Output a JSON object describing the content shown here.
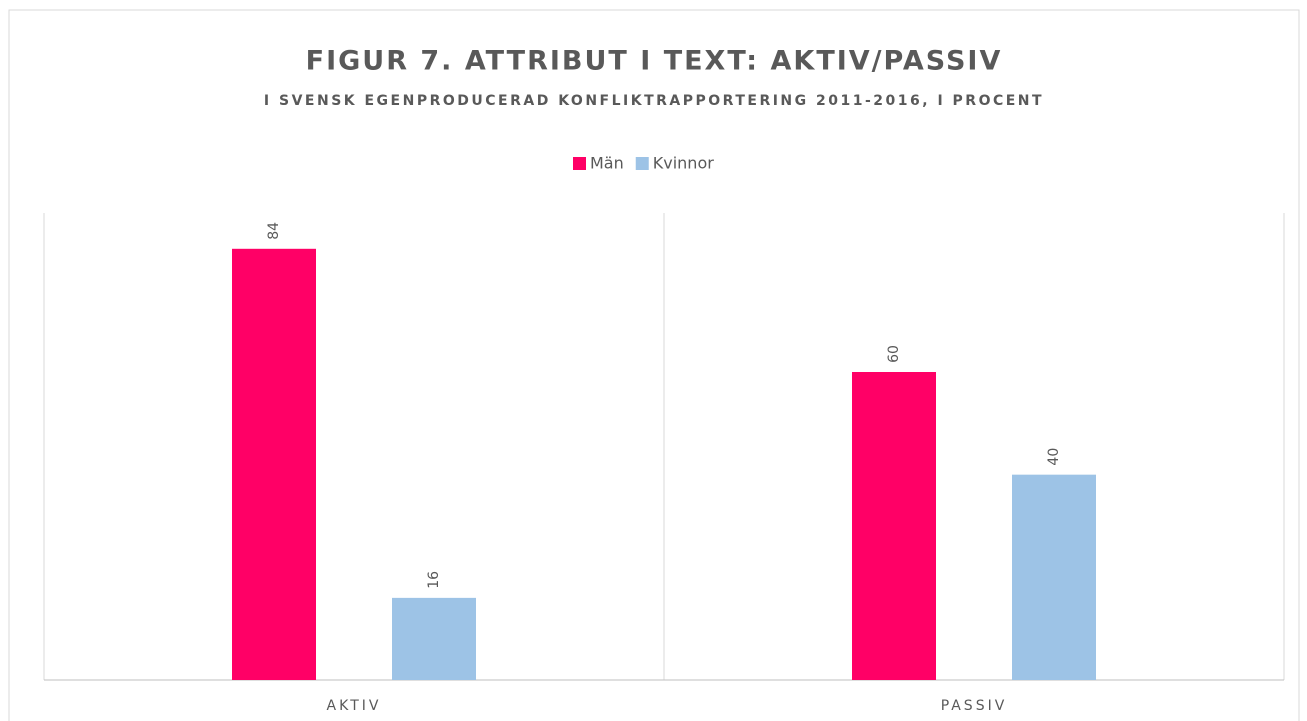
{
  "chart_data": {
    "type": "bar",
    "title": "FIGUR 7. ATTRIBUT I TEXT: AKTIV/PASSIV",
    "subtitle": "I SVENSK EGENPRODUCERAD KONFLIKTRAPPORTERING 2011-2016, I PROCENT",
    "categories": [
      "AKTIV",
      "PASSIV"
    ],
    "series": [
      {
        "name": "Män",
        "color": "#ff0066",
        "values": [
          84,
          60
        ]
      },
      {
        "name": "Kvinnor",
        "color": "#9dc3e6",
        "values": [
          16,
          40
        ]
      }
    ],
    "ylim": [
      0,
      90
    ],
    "legend": "top"
  }
}
